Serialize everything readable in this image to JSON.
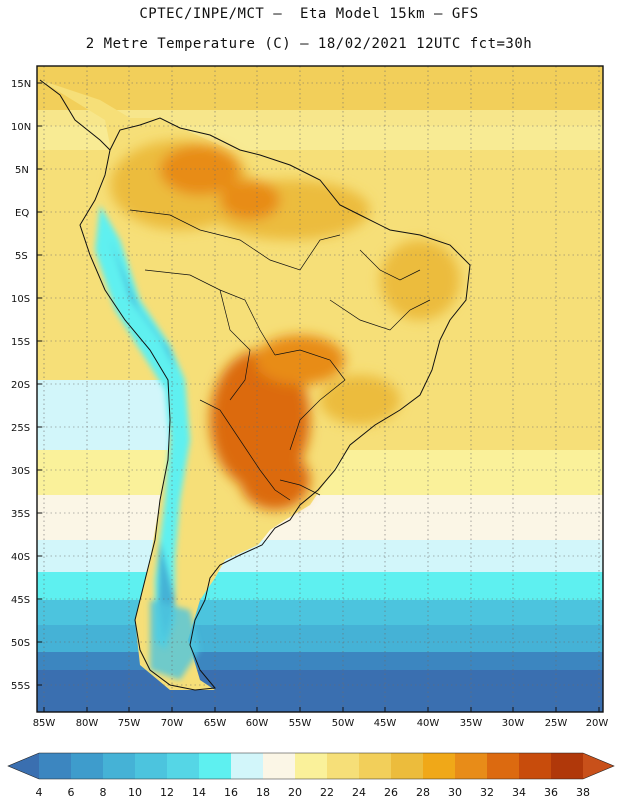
{
  "header": {
    "line1": "CPTEC/INPE/MCT –  Eta Model 15km – GFS",
    "line2": "2 Metre Temperature (C) – 18/02/2021 12UTC fct=30h"
  },
  "map": {
    "lat_labels": [
      "15N",
      "10N",
      "5N",
      "EQ",
      "5S",
      "10S",
      "15S",
      "20S",
      "25S",
      "30S",
      "35S",
      "40S",
      "45S",
      "50S",
      "55S"
    ],
    "lon_labels": [
      "85W",
      "80W",
      "75W",
      "70W",
      "65W",
      "60W",
      "55W",
      "50W",
      "45W",
      "40W",
      "35W",
      "30W",
      "25W",
      "20W"
    ],
    "lon_range": [
      -85,
      -20
    ],
    "lat_range": [
      -58,
      17
    ]
  },
  "colorbar": {
    "labels": [
      "4",
      "6",
      "8",
      "10",
      "12",
      "14",
      "16",
      "18",
      "20",
      "22",
      "24",
      "26",
      "28",
      "30",
      "32",
      "34",
      "36",
      "38"
    ],
    "colors": [
      "#3a6fb0",
      "#3c86c0",
      "#3e9ccc",
      "#45b2d6",
      "#4cc4de",
      "#55d6e6",
      "#5ef0f0",
      "#d2f6fa",
      "#fbf6e6",
      "#faf19a",
      "#f6df78",
      "#f2cf5a",
      "#ecbc3c",
      "#f0a818",
      "#e88c18",
      "#dc6a10",
      "#c84c0c",
      "#b0380a",
      "#c8501a"
    ]
  }
}
